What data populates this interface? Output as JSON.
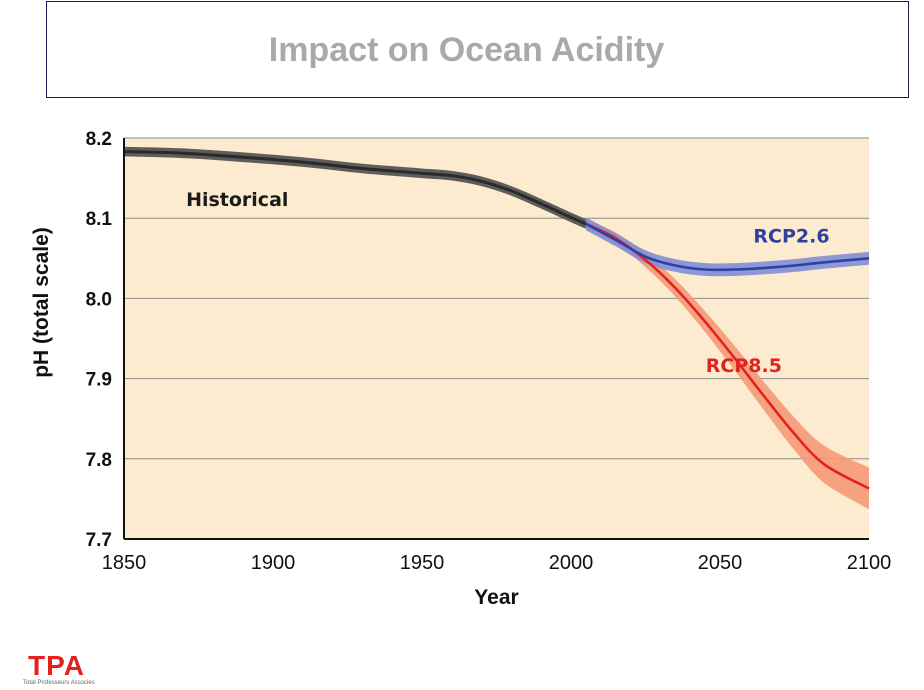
{
  "slide": {
    "title": "Impact on Ocean Acidity"
  },
  "logo": {
    "mark": "TPA",
    "subtitle": "Total Professeurs Associés"
  },
  "colors": {
    "background": "#fdebcf",
    "historical": "#2a2a2a",
    "historical_band": "#555555",
    "rcp26": "#3040a0",
    "rcp26_band": "#7f8ed8",
    "rcp85": "#e2221f",
    "rcp85_band": "#f59a78",
    "gridline": "#8c8c8c"
  },
  "chart_data": {
    "type": "line",
    "title": "",
    "xlabel": "Year",
    "ylabel": "pH (total scale)",
    "xlim": [
      1850,
      2100
    ],
    "ylim": [
      7.7,
      8.2
    ],
    "xticks": [
      "1850",
      "1900",
      "1950",
      "2000",
      "2050",
      "2100"
    ],
    "yticks": [
      "7.7",
      "7.8",
      "7.9",
      "8.0",
      "8.1",
      "8.2"
    ],
    "grid": "horizontal",
    "series": [
      {
        "name": "Historical",
        "x": [
          1850,
          1870,
          1890,
          1910,
          1930,
          1950,
          1960,
          1970,
          1980,
          1990,
          2000,
          2005
        ],
        "y": [
          8.183,
          8.181,
          8.176,
          8.17,
          8.162,
          8.156,
          8.153,
          8.146,
          8.134,
          8.118,
          8.101,
          8.093
        ],
        "band": 0.006
      },
      {
        "name": "RCP2.6",
        "x": [
          2005,
          2015,
          2025,
          2035,
          2045,
          2055,
          2065,
          2075,
          2085,
          2100
        ],
        "y": [
          8.093,
          8.073,
          8.052,
          8.041,
          8.036,
          8.036,
          8.038,
          8.041,
          8.045,
          8.05
        ],
        "band": 0.008
      },
      {
        "name": "RCP8.5",
        "x": [
          2005,
          2015,
          2025,
          2035,
          2045,
          2055,
          2065,
          2075,
          2085,
          2100
        ],
        "y": [
          8.093,
          8.075,
          8.048,
          8.013,
          7.971,
          7.925,
          7.877,
          7.831,
          7.793,
          7.763
        ],
        "band_start": 0.006,
        "band_end": 0.026
      }
    ]
  }
}
